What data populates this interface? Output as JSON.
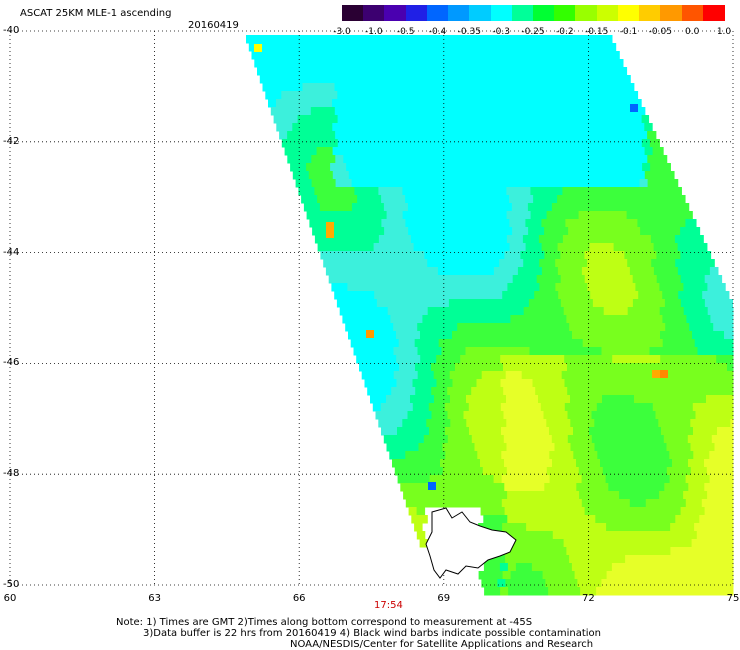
{
  "header": {
    "title": "ASCAT 25KM MLE-1 ascending",
    "date": "20160419"
  },
  "colorbar": {
    "colors": [
      "#2a0033",
      "#3c0070",
      "#4a00b0",
      "#2020e6",
      "#0066ff",
      "#0099ff",
      "#00ccff",
      "#00ffff",
      "#00ff99",
      "#00ff33",
      "#33ff00",
      "#99ff00",
      "#ccff00",
      "#ffff00",
      "#ffcc00",
      "#ff9900",
      "#ff5500",
      "#ff0000"
    ],
    "ticks": [
      "-3.0",
      "-1.0",
      "-0.5",
      "-0.4",
      "-0.35",
      "-0.3",
      "-0.25",
      "-0.2",
      "-0.15",
      "-0.1",
      "-0.05",
      "0.0",
      "1.0"
    ]
  },
  "axes": {
    "lat_labels": [
      "-40",
      "-42",
      "-44",
      "-46",
      "-48",
      "-50"
    ],
    "lat_values": [
      -40,
      -42,
      -44,
      -46,
      -48,
      -50
    ],
    "lon_labels": [
      "60",
      "63",
      "66",
      "69",
      "72",
      "75"
    ],
    "lon_values": [
      60,
      63,
      66,
      69,
      72,
      75
    ]
  },
  "time_marker": "17:54",
  "notes": {
    "line1": "Note: 1) Times are GMT 2)Times along bottom correspond to measurement at -45S",
    "line2": "3)Data buffer is 22 hrs from 20160419 4) Black wind barbs indicate possible contamination",
    "line3": "NOAA/NESDIS/Center for Satellite Applications and Research"
  }
}
